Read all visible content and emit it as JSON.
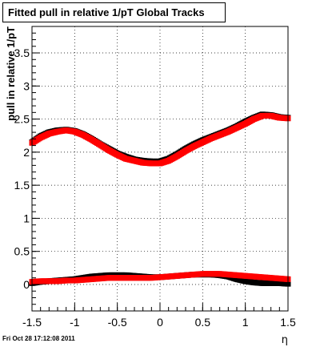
{
  "chart_data": {
    "type": "scatter",
    "title": "Fitted pull in relative 1/pT  Global Tracks",
    "xlabel": "η",
    "ylabel": "pull in relative 1/pT",
    "xlim": [
      -1.5,
      1.5
    ],
    "ylim": [
      -0.4,
      3.9
    ],
    "xticks": [
      -1.5,
      -1,
      -0.5,
      0,
      0.5,
      1,
      1.5
    ],
    "xtick_labels": [
      "-1.5",
      "-1",
      "-0.5",
      "0",
      "0.5",
      "1",
      "1.5"
    ],
    "yticks": [
      0,
      0.5,
      1,
      1.5,
      2,
      2.5,
      3,
      3.5
    ],
    "ytick_labels": [
      "0",
      "0.5",
      "1",
      "1.5",
      "2",
      "2.5",
      "3",
      "3.5"
    ],
    "grid": true,
    "x": [
      -1.5,
      -1.4,
      -1.3,
      -1.2,
      -1.1,
      -1.0,
      -0.9,
      -0.8,
      -0.7,
      -0.6,
      -0.5,
      -0.4,
      -0.3,
      -0.2,
      -0.1,
      0.0,
      0.1,
      0.2,
      0.3,
      0.4,
      0.5,
      0.6,
      0.7,
      0.8,
      0.9,
      1.0,
      1.1,
      1.2,
      1.3,
      1.4,
      1.5
    ],
    "series": [
      {
        "color": "#000000",
        "values": [
          2.15,
          2.24,
          2.3,
          2.33,
          2.34,
          2.32,
          2.27,
          2.2,
          2.12,
          2.05,
          1.98,
          1.93,
          1.89,
          1.87,
          1.86,
          1.86,
          1.9,
          1.97,
          2.05,
          2.12,
          2.18,
          2.23,
          2.28,
          2.33,
          2.39,
          2.46,
          2.52,
          2.57,
          2.56,
          2.53,
          2.52
        ]
      },
      {
        "color": "#ff0000",
        "values": [
          2.14,
          2.22,
          2.28,
          2.31,
          2.33,
          2.31,
          2.26,
          2.19,
          2.11,
          2.03,
          1.96,
          1.9,
          1.87,
          1.84,
          1.83,
          1.83,
          1.87,
          1.94,
          2.02,
          2.09,
          2.15,
          2.21,
          2.26,
          2.31,
          2.37,
          2.43,
          2.5,
          2.55,
          2.55,
          2.52,
          2.51
        ]
      },
      {
        "color": "#000000",
        "values": [
          0.02,
          0.04,
          0.05,
          0.06,
          0.07,
          0.08,
          0.1,
          0.12,
          0.13,
          0.14,
          0.14,
          0.14,
          0.13,
          0.12,
          0.11,
          0.11,
          0.12,
          0.13,
          0.14,
          0.15,
          0.15,
          0.15,
          0.14,
          0.12,
          0.08,
          0.05,
          0.03,
          0.02,
          0.02,
          0.02,
          0.01
        ]
      },
      {
        "color": "#ff0000",
        "values": [
          0.04,
          0.05,
          0.05,
          0.05,
          0.06,
          0.06,
          0.07,
          0.08,
          0.09,
          0.1,
          0.1,
          0.1,
          0.1,
          0.1,
          0.1,
          0.11,
          0.12,
          0.13,
          0.14,
          0.15,
          0.16,
          0.16,
          0.16,
          0.15,
          0.14,
          0.13,
          0.12,
          0.11,
          0.1,
          0.09,
          0.08
        ]
      }
    ]
  },
  "footer": {
    "timestamp": "Fri Oct 28 17:12:08 2011"
  }
}
